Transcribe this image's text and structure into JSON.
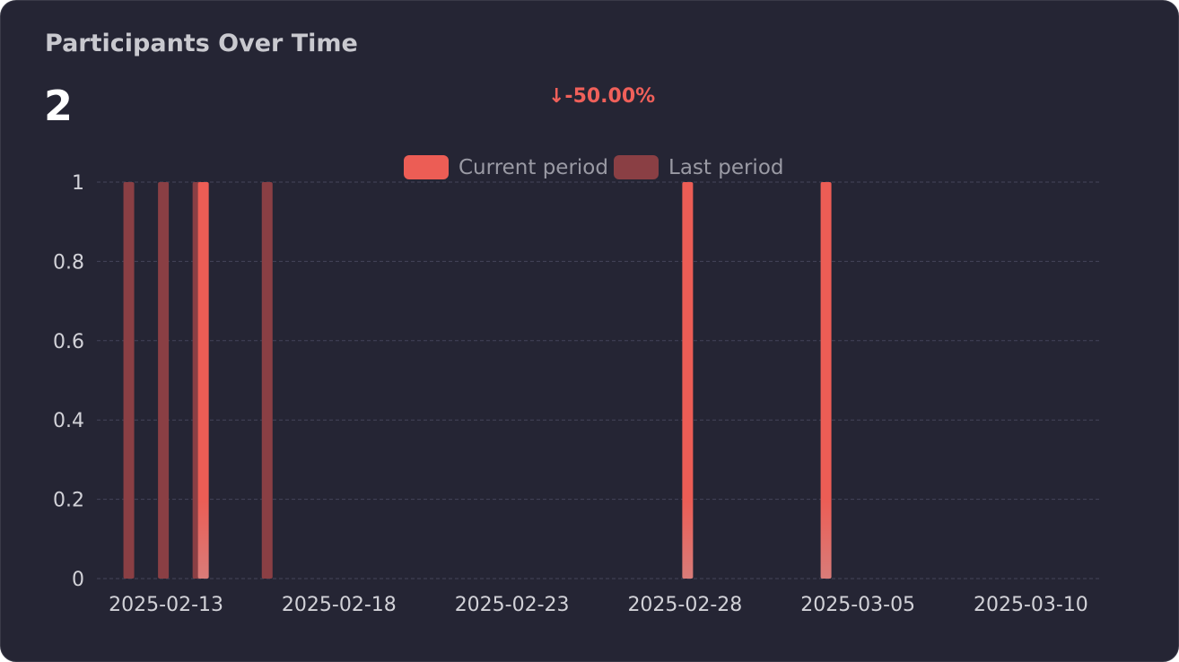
{
  "card": {
    "title": "Participants Over Time",
    "value": "2",
    "change": "↓-50.00%"
  },
  "colors": {
    "background": "#252534",
    "current": "#ec5d55",
    "current_fade": "#d97c79",
    "last": "#8a3f44",
    "change": "#f0605a",
    "grid": "#45455a"
  },
  "chart_data": {
    "type": "bar",
    "title": "Participants Over Time",
    "xlabel": "",
    "ylabel": "",
    "ylim": [
      0,
      1
    ],
    "y_ticks": [
      "0",
      "0.2",
      "0.4",
      "0.6",
      "0.8",
      "1"
    ],
    "x_ticks": [
      "2025-02-13",
      "2025-02-18",
      "2025-02-23",
      "2025-02-28",
      "2025-03-05",
      "2025-03-10"
    ],
    "x_range": [
      "2025-02-11",
      "2025-03-12"
    ],
    "grid": true,
    "legend_position": "top-center",
    "series": [
      {
        "name": "Current period",
        "points": [
          {
            "x": "2025-02-14",
            "y": 1
          },
          {
            "x": "2025-02-28",
            "y": 1
          },
          {
            "x": "2025-03-04",
            "y": 1
          }
        ]
      },
      {
        "name": "Last period",
        "points": [
          {
            "x": "2025-02-12",
            "y": 1
          },
          {
            "x": "2025-02-13",
            "y": 1
          },
          {
            "x": "2025-02-14",
            "y": 1
          },
          {
            "x": "2025-02-16",
            "y": 1
          }
        ]
      }
    ]
  }
}
